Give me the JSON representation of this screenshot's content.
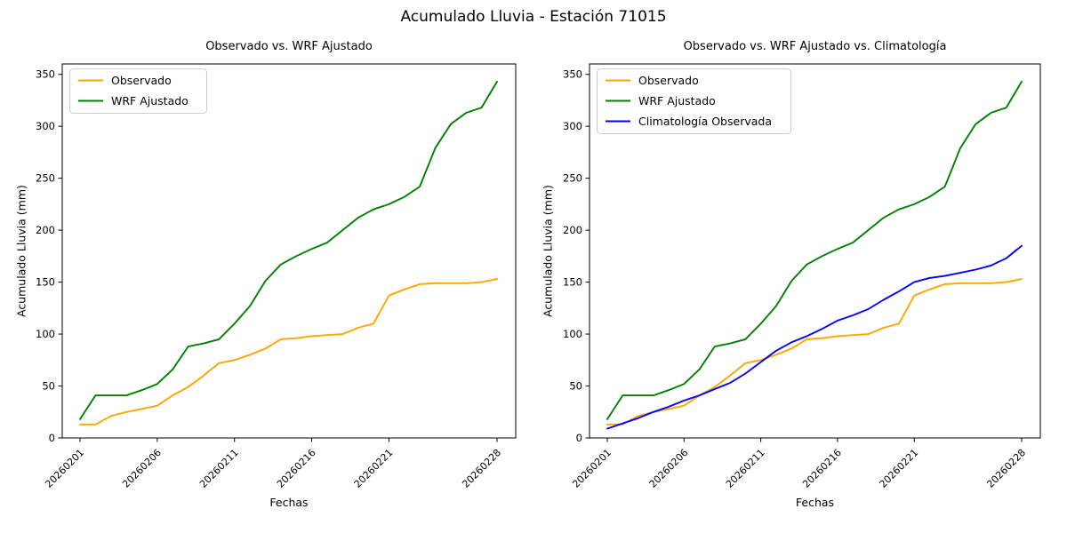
{
  "suptitle": "Acumulado Lluvia - Estación 71015",
  "colors": {
    "observado": "#FFA500",
    "wrf_ajustado": "#008000",
    "climatologia": "#0000FF",
    "axes": "#000000",
    "legend_border": "#cccccc",
    "background": "#ffffff"
  },
  "chart_data": [
    {
      "type": "line",
      "title": "Observado vs. WRF Ajustado",
      "xlabel": "Fechas",
      "ylabel": "Acumulado Lluvia (mm)",
      "x": [
        "20260201",
        "20260202",
        "20260203",
        "20260204",
        "20260205",
        "20260206",
        "20260207",
        "20260208",
        "20260209",
        "20260210",
        "20260211",
        "20260212",
        "20260213",
        "20260214",
        "20260215",
        "20260216",
        "20260217",
        "20260218",
        "20260219",
        "20260220",
        "20260221",
        "20260222",
        "20260223",
        "20260224",
        "20260225",
        "20260226",
        "20260227",
        "20260228"
      ],
      "tick_indices": [
        0,
        5,
        10,
        15,
        20,
        27
      ],
      "xtick_labels": [
        "20260201",
        "20260206",
        "20260211",
        "20260216",
        "20260221",
        "20260228"
      ],
      "xtick_rotation": 45,
      "ylim": [
        0,
        360
      ],
      "yticks": [
        0,
        50,
        100,
        150,
        200,
        250,
        300,
        350
      ],
      "grid": false,
      "legend_position": "upper left",
      "series": [
        {
          "name": "Observado",
          "color": "#FFA500",
          "values": [
            13,
            13,
            21,
            25,
            28,
            31,
            41,
            49,
            60,
            72,
            75,
            80,
            86,
            95,
            96,
            98,
            99,
            100,
            106,
            110,
            137,
            143,
            148,
            149,
            149,
            149,
            150,
            153
          ]
        },
        {
          "name": "WRF Ajustado",
          "color": "#008000",
          "values": [
            18,
            41,
            41,
            41,
            46,
            52,
            66,
            88,
            91,
            95,
            110,
            127,
            151,
            167,
            175,
            182,
            188,
            200,
            212,
            220,
            225,
            232,
            242,
            279,
            302,
            313,
            318,
            343
          ]
        }
      ]
    },
    {
      "type": "line",
      "title": "Observado vs. WRF Ajustado vs. Climatología",
      "xlabel": "Fechas",
      "ylabel": "Acumulado Lluvia (mm)",
      "x": [
        "20260201",
        "20260202",
        "20260203",
        "20260204",
        "20260205",
        "20260206",
        "20260207",
        "20260208",
        "20260209",
        "20260210",
        "20260211",
        "20260212",
        "20260213",
        "20260214",
        "20260215",
        "20260216",
        "20260217",
        "20260218",
        "20260219",
        "20260220",
        "20260221",
        "20260222",
        "20260223",
        "20260224",
        "20260225",
        "20260226",
        "20260227",
        "20260228"
      ],
      "tick_indices": [
        0,
        5,
        10,
        15,
        20,
        27
      ],
      "xtick_labels": [
        "20260201",
        "20260206",
        "20260211",
        "20260216",
        "20260221",
        "20260228"
      ],
      "xtick_rotation": 45,
      "ylim": [
        0,
        360
      ],
      "yticks": [
        0,
        50,
        100,
        150,
        200,
        250,
        300,
        350
      ],
      "grid": false,
      "legend_position": "upper left",
      "series": [
        {
          "name": "Observado",
          "color": "#FFA500",
          "values": [
            13,
            13,
            21,
            25,
            28,
            31,
            41,
            49,
            60,
            72,
            75,
            80,
            86,
            95,
            96,
            98,
            99,
            100,
            106,
            110,
            137,
            143,
            148,
            149,
            149,
            149,
            150,
            153
          ]
        },
        {
          "name": "WRF Ajustado",
          "color": "#008000",
          "values": [
            18,
            41,
            41,
            41,
            46,
            52,
            66,
            88,
            91,
            95,
            110,
            127,
            151,
            167,
            175,
            182,
            188,
            200,
            212,
            220,
            225,
            232,
            242,
            279,
            302,
            313,
            318,
            343
          ]
        },
        {
          "name": "Climatología Observada",
          "color": "#0000FF",
          "values": [
            9,
            14,
            19,
            25,
            30,
            36,
            41,
            47,
            53,
            62,
            73,
            84,
            92,
            98,
            105,
            113,
            118,
            124,
            133,
            141,
            150,
            154,
            156,
            159,
            162,
            166,
            173,
            185
          ]
        }
      ]
    }
  ]
}
